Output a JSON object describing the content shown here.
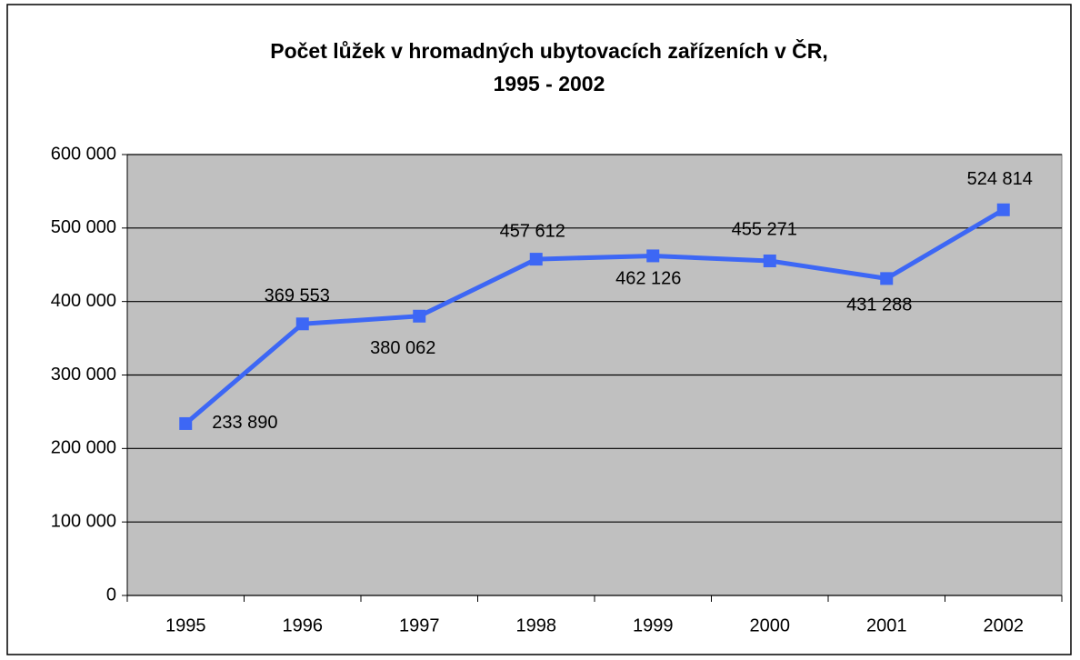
{
  "chart_data": {
    "type": "line",
    "title": [
      "Počet lůžek v hromadných ubytovacích zařízeních v ČR,",
      "1995 - 2002"
    ],
    "categories": [
      "1995",
      "1996",
      "1997",
      "1998",
      "1999",
      "2000",
      "2001",
      "2002"
    ],
    "series": [
      {
        "name": "Počet lůžek",
        "color": "#3d67f5",
        "values": [
          233890,
          369553,
          380062,
          457612,
          462126,
          455271,
          431288,
          524814
        ],
        "value_labels": [
          "233 890",
          "369 553",
          "380 062",
          "457 612",
          "462 126",
          "455 271",
          "431 288",
          "524 814"
        ]
      }
    ],
    "ylim": [
      0,
      600000
    ],
    "yticks": [
      0,
      {
        "value": 100000,
        "label": "100 000"
      },
      {
        "value": 200000,
        "label": "200 000"
      },
      {
        "value": 300000,
        "label": "300 000"
      },
      {
        "value": 400000,
        "label": "400 000"
      },
      {
        "value": 500000,
        "label": "500 000"
      },
      {
        "value": 600000,
        "label": "600 000"
      }
    ],
    "grid": true,
    "plot_background": "#c0c0c0"
  }
}
